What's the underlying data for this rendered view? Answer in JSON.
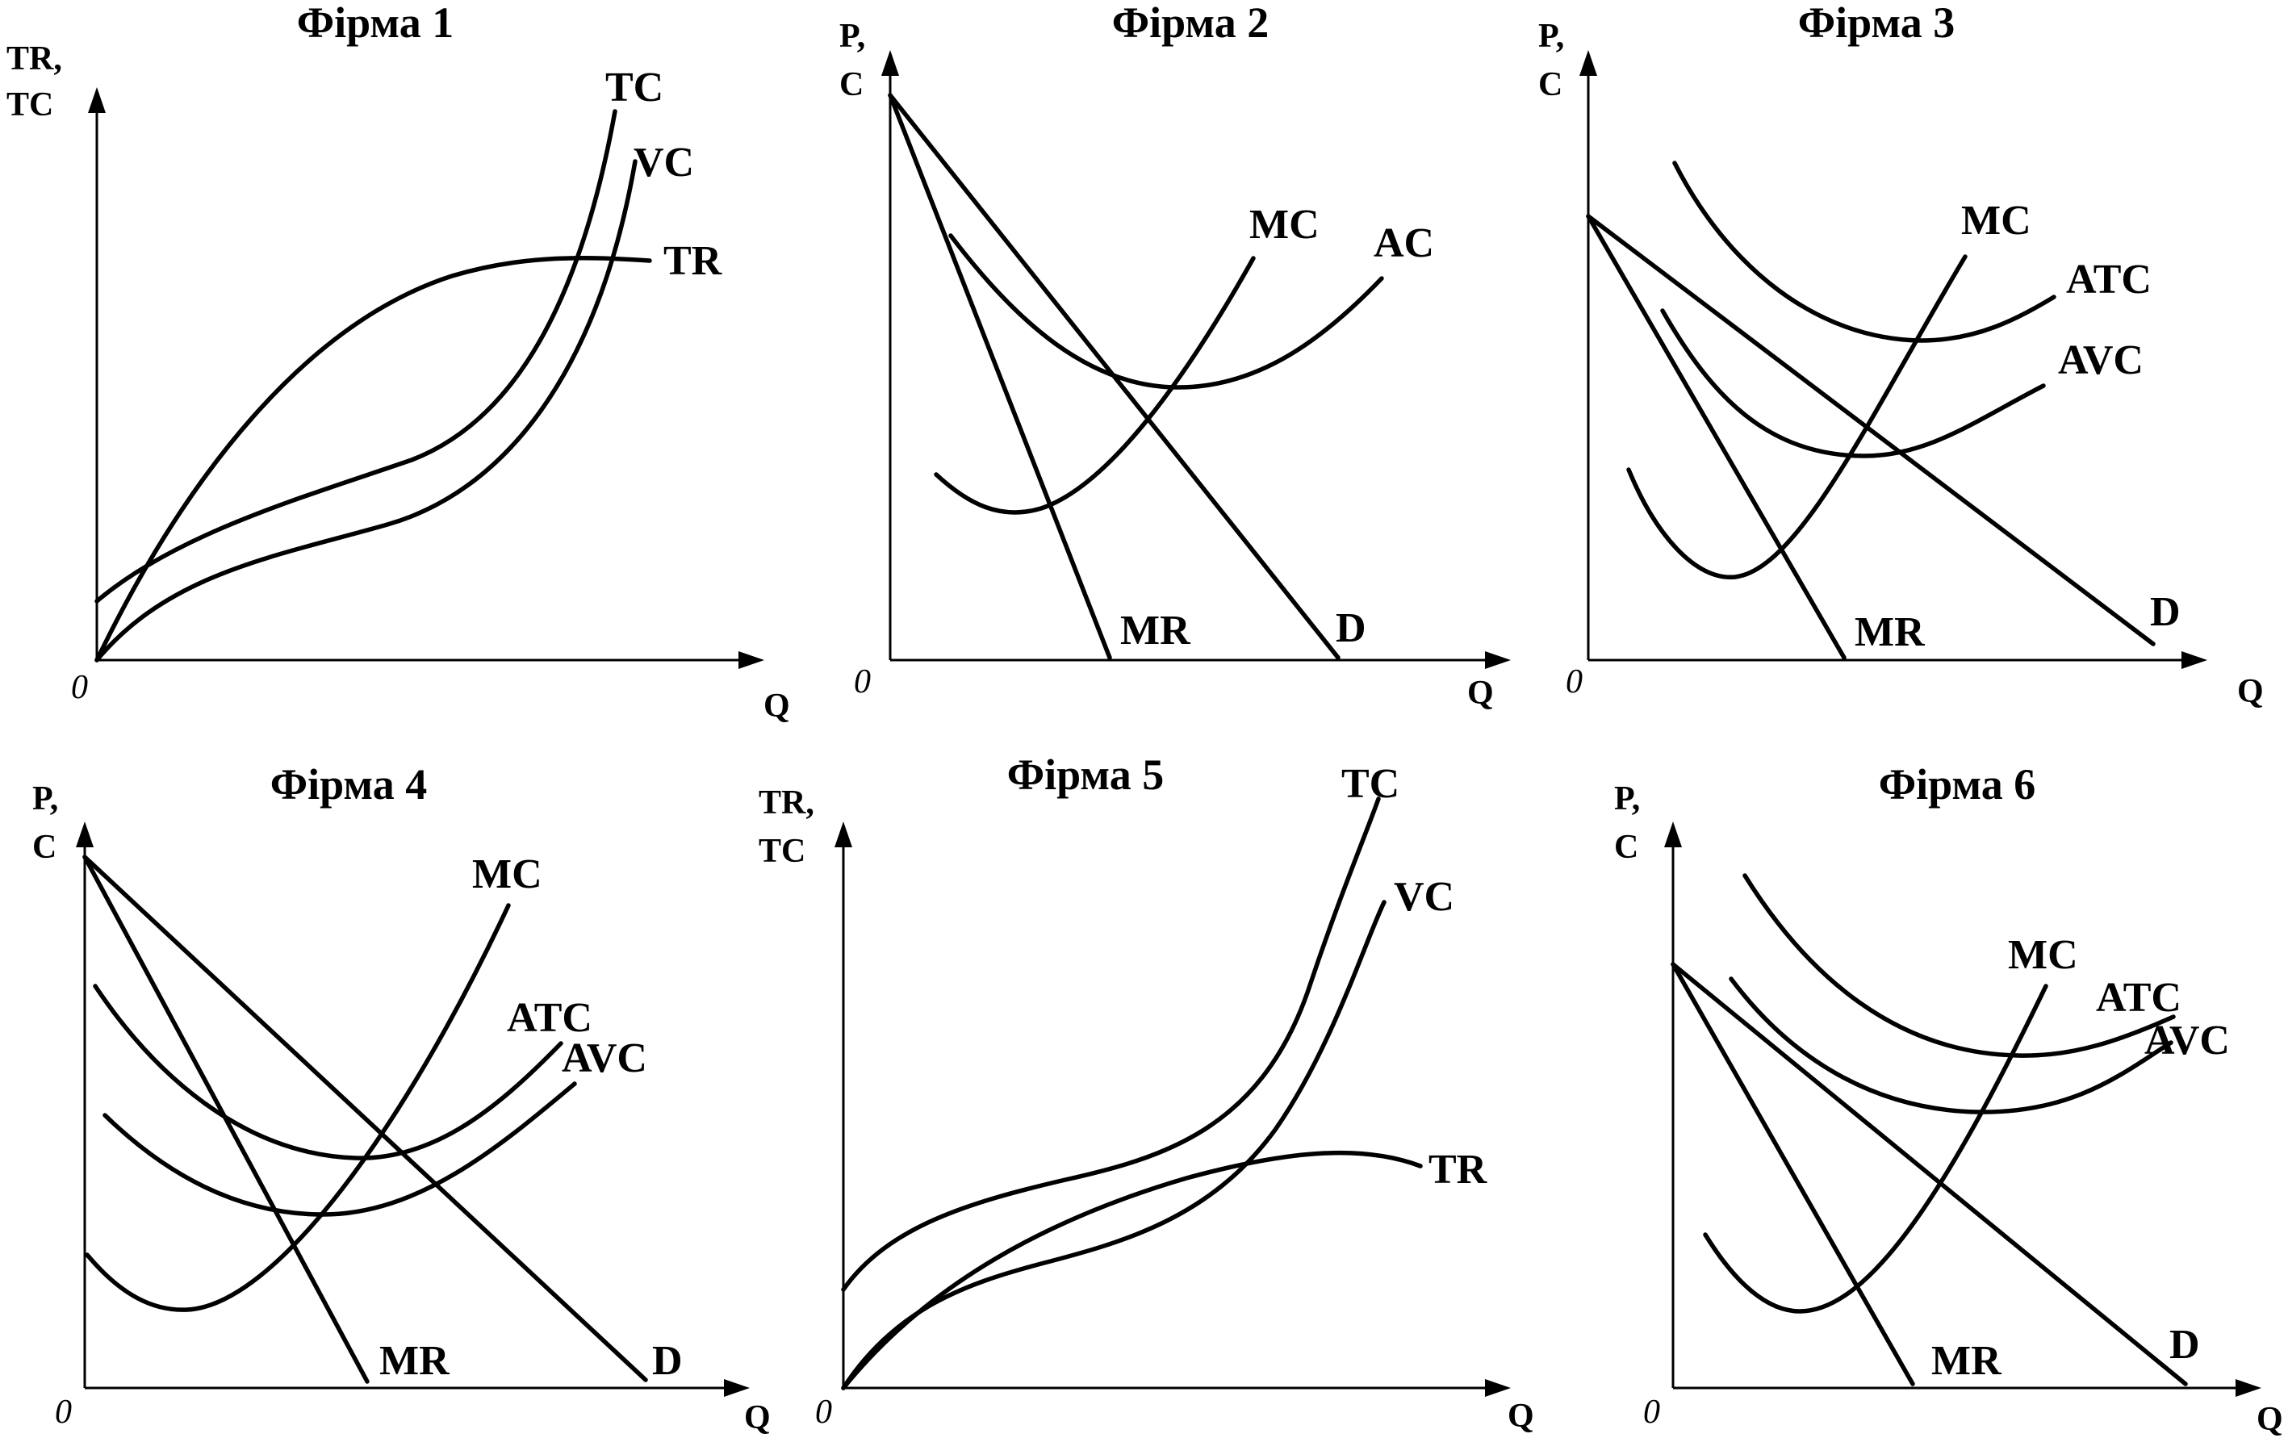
{
  "panels": [
    {
      "id": "firm-1",
      "title": "Фірма 1",
      "y_axis_label": [
        "TR,",
        "TC"
      ],
      "x_axis_label": "Q",
      "origin_label": "0",
      "curve_labels": [
        "TC",
        "VC",
        "TR"
      ]
    },
    {
      "id": "firm-2",
      "title": "Фірма 2",
      "y_axis_label": [
        "P,",
        "C"
      ],
      "x_axis_label": "Q",
      "origin_label": "0",
      "curve_labels": [
        "MC",
        "AC",
        "MR",
        "D"
      ]
    },
    {
      "id": "firm-3",
      "title": "Фірма 3",
      "y_axis_label": [
        "P,",
        "C"
      ],
      "x_axis_label": "Q",
      "origin_label": "0",
      "curve_labels": [
        "MC",
        "ATC",
        "AVC",
        "MR",
        "D"
      ]
    },
    {
      "id": "firm-4",
      "title": "Фірма 4",
      "y_axis_label": [
        "P,",
        "C"
      ],
      "x_axis_label": "Q",
      "origin_label": "0",
      "curve_labels": [
        "MC",
        "ATC",
        "AVC",
        "MR",
        "D"
      ]
    },
    {
      "id": "firm-5",
      "title": "Фірма 5",
      "y_axis_label": [
        "TR,",
        "TC"
      ],
      "x_axis_label": "Q",
      "origin_label": "0",
      "curve_labels": [
        "TC",
        "VC",
        "TR"
      ]
    },
    {
      "id": "firm-6",
      "title": "Фірма 6",
      "y_axis_label": [
        "P,",
        "C"
      ],
      "x_axis_label": "Q",
      "origin_label": "0",
      "curve_labels": [
        "MC",
        "ATC",
        "AVC",
        "MR",
        "D"
      ]
    }
  ]
}
